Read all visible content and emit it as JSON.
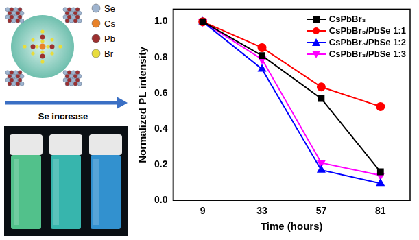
{
  "schematic": {
    "elements": [
      {
        "label": "Se",
        "color": "#9fb4cf"
      },
      {
        "label": "Cs",
        "color": "#e8822a"
      },
      {
        "label": "Pb",
        "color": "#9c3030"
      },
      {
        "label": "Br",
        "color": "#e8dc3c"
      }
    ],
    "arrow_label": "Se increase"
  },
  "chart_data": {
    "type": "line",
    "x_label": "Time (hours)",
    "y_label": "Normalized PL intensity",
    "categories": [
      "9",
      "33",
      "57",
      "81"
    ],
    "ylim": [
      0,
      1.07
    ],
    "yticks": [
      {
        "value": 0,
        "label": "0.0"
      },
      0.2,
      0.4,
      0.6,
      0.8,
      {
        "value": 1,
        "label": "1.0"
      }
    ],
    "grid": false,
    "legend": "upper right",
    "series": [
      {
        "name": "CsPbBr₃",
        "color": "#000000",
        "marker": "square",
        "values": [
          1.0,
          0.81,
          0.57,
          0.16
        ]
      },
      {
        "name": "CsPbBr₃/PbSe 1:1",
        "color": "#ff0000",
        "marker": "circle",
        "values": [
          1.0,
          0.855,
          0.635,
          0.525
        ]
      },
      {
        "name": "CsPbBr₃/PbSe 1:2",
        "color": "#0000ff",
        "marker": "triangle",
        "values": [
          1.0,
          0.735,
          0.17,
          0.095
        ]
      },
      {
        "name": "CsPbBr₃/PbSe 1:3",
        "color": "#ff00ff",
        "marker": "triangle_down",
        "values": [
          1.0,
          0.79,
          0.21,
          0.14
        ]
      }
    ]
  }
}
